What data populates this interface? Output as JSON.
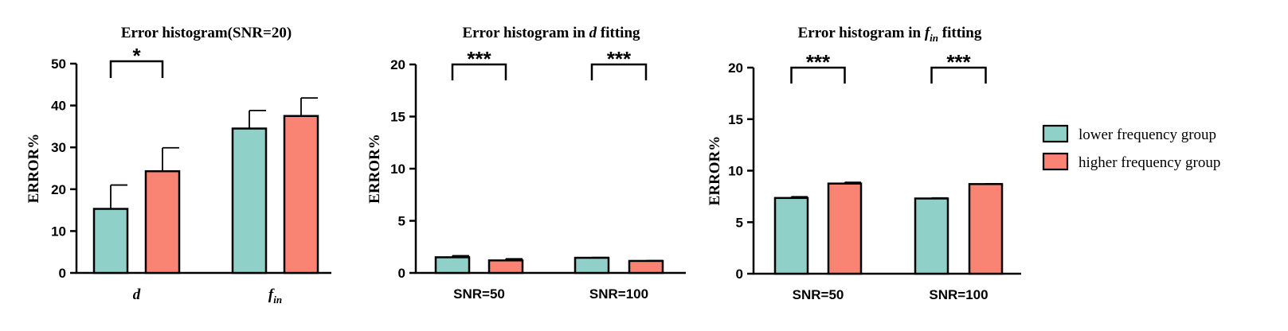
{
  "colors": {
    "lower": "#8fd1c8",
    "higher": "#f98473",
    "stroke": "#000000"
  },
  "legend": {
    "entries": [
      {
        "label": "lower frequency group",
        "color": "#8fd1c8"
      },
      {
        "label": "higher frequency group",
        "color": "#f98473"
      }
    ],
    "placement": "right"
  },
  "chart_data": [
    {
      "type": "bar",
      "title": "Error histogram(SNR=20)",
      "ylabel": "ERROR%",
      "xlabel": "",
      "ylim": [
        0,
        50
      ],
      "yticks": [
        0,
        10,
        20,
        30,
        40,
        50
      ],
      "categories": [
        {
          "main": "d",
          "sub": ""
        },
        {
          "main": "f",
          "sub": "in"
        }
      ],
      "category_style": "italic-serif",
      "series": [
        {
          "name": "lower frequency group",
          "values": [
            15.3,
            34.5
          ],
          "errors": [
            5.7,
            4.3
          ]
        },
        {
          "name": "higher frequency group",
          "values": [
            24.3,
            37.5
          ],
          "errors": [
            5.6,
            4.3
          ]
        }
      ],
      "significance": [
        {
          "category": 0,
          "label": "*",
          "y": 50
        }
      ]
    },
    {
      "type": "bar",
      "title": "Error histogram in d fitting",
      "title_parts": {
        "pre": "Error histogram in ",
        "var": "d",
        "sub": "",
        "post": " fitting"
      },
      "ylabel": "ERROR%",
      "xlabel": "",
      "ylim": [
        0,
        20
      ],
      "yticks": [
        0,
        5,
        10,
        15,
        20
      ],
      "categories": [
        {
          "main": "SNR=50",
          "sub": ""
        },
        {
          "main": "SNR=100",
          "sub": ""
        }
      ],
      "category_style": "bold-sans",
      "series": [
        {
          "name": "lower frequency group",
          "values": [
            1.5,
            1.45
          ],
          "errors": [
            0.15,
            0.03
          ]
        },
        {
          "name": "higher frequency group",
          "values": [
            1.2,
            1.15
          ],
          "errors": [
            0.15,
            0.03
          ]
        }
      ],
      "significance": [
        {
          "category": 0,
          "label": "***",
          "y": 20
        },
        {
          "category": 1,
          "label": "***",
          "y": 20
        }
      ]
    },
    {
      "type": "bar",
      "title": "Error histogram in fin fitting",
      "title_parts": {
        "pre": "Error histogram in ",
        "var": "f",
        "sub": "in",
        "post": " fitting"
      },
      "ylabel": "ERROR%",
      "xlabel": "",
      "ylim": [
        0,
        20
      ],
      "yticks": [
        0,
        5,
        10,
        15,
        20
      ],
      "categories": [
        {
          "main": "SNR=50",
          "sub": ""
        },
        {
          "main": "SNR=100",
          "sub": ""
        }
      ],
      "category_style": "bold-sans",
      "series": [
        {
          "name": "lower frequency group",
          "values": [
            7.35,
            7.3
          ],
          "errors": [
            0.12,
            0.05
          ]
        },
        {
          "name": "higher frequency group",
          "values": [
            8.75,
            8.7
          ],
          "errors": [
            0.12,
            0.03
          ]
        }
      ],
      "significance": [
        {
          "category": 0,
          "label": "***",
          "y": 20
        },
        {
          "category": 1,
          "label": "***",
          "y": 20
        }
      ]
    }
  ]
}
